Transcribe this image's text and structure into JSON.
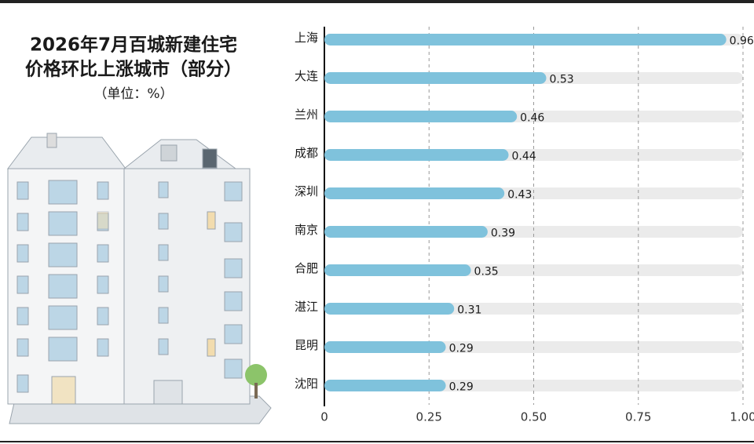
{
  "chart_data": {
    "type": "bar",
    "orientation": "horizontal",
    "title": [
      "2026年7月百城新建住宅",
      "价格环比上涨城市（部分）"
    ],
    "subtitle": "（单位：%）",
    "categories": [
      "上海",
      "大连",
      "兰州",
      "成都",
      "深圳",
      "南京",
      "合肥",
      "湛江",
      "昆明",
      "沈阳"
    ],
    "values": [
      0.96,
      0.53,
      0.46,
      0.44,
      0.43,
      0.39,
      0.35,
      0.31,
      0.29,
      0.29
    ],
    "color": "#7fc2dc",
    "xlim": [
      0,
      1
    ],
    "xticks": [
      0,
      0.25,
      {
        "value": 0.5,
        "label": "0.50"
      },
      0.75,
      {
        "value": 1,
        "label": "1.00"
      }
    ],
    "grid": true
  }
}
